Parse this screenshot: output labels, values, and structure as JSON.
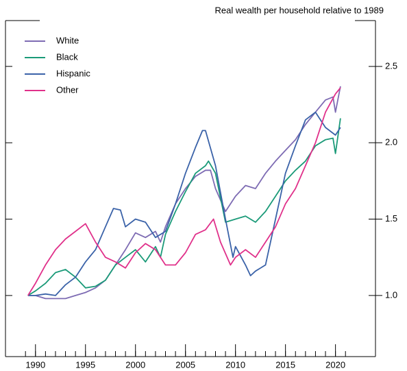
{
  "chart_data": {
    "type": "line",
    "title": "Real wealth per household relative to 1989",
    "xlim": [
      1987,
      2024
    ],
    "ylim": [
      0.6,
      2.8
    ],
    "xticks": [
      1990,
      1995,
      2000,
      2005,
      2010,
      2015,
      2020
    ],
    "minor_xticks": [
      1989,
      1990,
      1991,
      1992,
      1993,
      1994,
      1995,
      1996,
      1997,
      1998,
      1999,
      2000,
      2001,
      2002,
      2003,
      2004,
      2005,
      2006,
      2007,
      2008,
      2009,
      2010,
      2011,
      2012,
      2013,
      2014,
      2015,
      2016,
      2017,
      2018,
      2019,
      2020,
      2021
    ],
    "yticks": [
      {
        "value": 1.0,
        "label": "1.0"
      },
      {
        "value": 1.5,
        "label": "1.5"
      },
      {
        "value": 2.0,
        "label": "2.0"
      },
      {
        "value": 2.5,
        "label": "2.5"
      }
    ],
    "legend": "upper-left",
    "series": [
      {
        "name": "White",
        "color": "#7d6bb3",
        "x": [
          1989.25,
          1990,
          1991,
          1992,
          1993,
          1994,
          1995,
          1996,
          1997,
          1998,
          1999,
          2000,
          2001,
          2002,
          2002.5,
          2003,
          2004,
          2005,
          2006,
          2007,
          2007.5,
          2008,
          2009,
          2009.5,
          2010,
          2011,
          2012,
          2013,
          2014,
          2015,
          2016,
          2017,
          2018,
          2019,
          2019.75,
          2020,
          2020.5
        ],
        "values": [
          1.0,
          1.0,
          0.98,
          0.98,
          0.98,
          1.0,
          1.02,
          1.05,
          1.1,
          1.2,
          1.3,
          1.41,
          1.38,
          1.42,
          1.35,
          1.45,
          1.6,
          1.7,
          1.78,
          1.82,
          1.82,
          1.7,
          1.55,
          1.6,
          1.65,
          1.72,
          1.7,
          1.8,
          1.88,
          1.95,
          2.02,
          2.12,
          2.2,
          2.28,
          2.3,
          2.2,
          2.37
        ]
      },
      {
        "name": "Black",
        "color": "#1a9a78",
        "x": [
          1989.25,
          1990,
          1991,
          1992,
          1993,
          1994,
          1995,
          1996,
          1997,
          1998,
          1999,
          2000,
          2001,
          2002,
          2002.5,
          2003,
          2004,
          2005,
          2006,
          2007,
          2007.3,
          2008,
          2009,
          2010,
          2011,
          2012,
          2013,
          2014,
          2015,
          2016,
          2017,
          2018,
          2019,
          2019.75,
          2020,
          2020.5
        ],
        "values": [
          1.0,
          1.03,
          1.08,
          1.15,
          1.17,
          1.12,
          1.05,
          1.06,
          1.1,
          1.2,
          1.25,
          1.3,
          1.22,
          1.32,
          1.25,
          1.4,
          1.55,
          1.68,
          1.8,
          1.85,
          1.88,
          1.8,
          1.48,
          1.5,
          1.52,
          1.48,
          1.55,
          1.65,
          1.75,
          1.82,
          1.88,
          1.98,
          2.02,
          2.03,
          1.93,
          2.16
        ]
      },
      {
        "name": "Hispanic",
        "color": "#3a62a8",
        "x": [
          1989.25,
          1990,
          1991,
          1992,
          1993,
          1994,
          1995,
          1996,
          1997,
          1997.8,
          1998.5,
          1999,
          2000,
          2001,
          2002,
          2003,
          2004,
          2005,
          2006,
          2006.7,
          2007,
          2008,
          2009,
          2009.75,
          2010,
          2011,
          2011.5,
          2012,
          2013,
          2014,
          2015,
          2016,
          2017,
          2018,
          2019,
          2020,
          2020.5
        ],
        "values": [
          1.0,
          1.0,
          1.01,
          1.0,
          1.07,
          1.12,
          1.22,
          1.3,
          1.45,
          1.57,
          1.56,
          1.45,
          1.5,
          1.48,
          1.38,
          1.42,
          1.6,
          1.8,
          1.97,
          2.08,
          2.08,
          1.85,
          1.5,
          1.25,
          1.32,
          1.2,
          1.13,
          1.16,
          1.2,
          1.5,
          1.8,
          1.98,
          2.15,
          2.2,
          2.1,
          2.05,
          2.1
        ]
      },
      {
        "name": "Other",
        "color": "#e0308a",
        "x": [
          1989.25,
          1990,
          1991,
          1992,
          1993,
          1994,
          1995,
          1996,
          1997,
          1998,
          1999,
          2000,
          2001,
          2002,
          2003,
          2004,
          2005,
          2006,
          2007,
          2007.8,
          2008.5,
          2009.5,
          2010,
          2011,
          2012,
          2013,
          2014,
          2015,
          2016,
          2017,
          2018,
          2019,
          2020,
          2020.5
        ],
        "values": [
          1.0,
          1.08,
          1.2,
          1.3,
          1.37,
          1.42,
          1.47,
          1.35,
          1.25,
          1.22,
          1.18,
          1.28,
          1.34,
          1.3,
          1.2,
          1.2,
          1.28,
          1.4,
          1.43,
          1.5,
          1.35,
          1.2,
          1.25,
          1.3,
          1.25,
          1.35,
          1.45,
          1.6,
          1.7,
          1.85,
          2.0,
          2.2,
          2.32,
          2.36
        ]
      }
    ]
  }
}
